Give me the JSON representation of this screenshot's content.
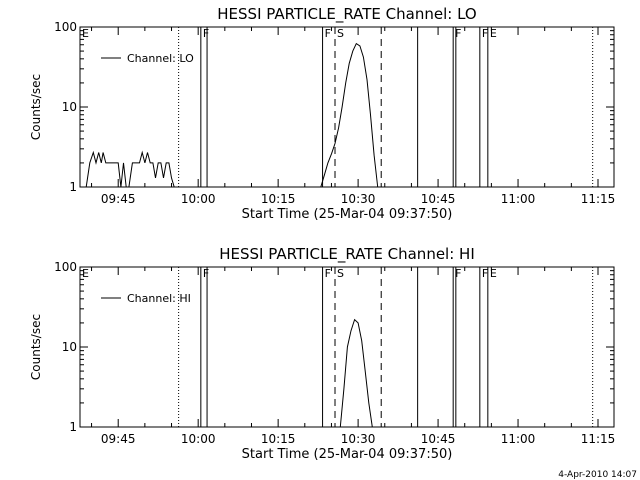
{
  "chart_data": [
    {
      "type": "line",
      "title": "HESSI PARTICLE_RATE Channel: LO",
      "xlabel": "Start Time (25-Mar-04 09:37:50)",
      "ylabel": "Counts/sec",
      "y_scale": "log",
      "ylim": [
        1,
        100
      ],
      "xlim": [
        "09:37:50",
        "11:18:00"
      ],
      "x_ticks": [
        "09:45",
        "10:00",
        "10:15",
        "10:30",
        "10:45",
        "11:00",
        "11:15"
      ],
      "y_ticks": [
        "1",
        "10",
        "100"
      ],
      "legend": {
        "entries": [
          "Channel: LO"
        ],
        "placement": "top-left"
      },
      "series": [
        {
          "name": "Channel: LO",
          "x": [
            "09:39:00",
            "09:39:40",
            "09:40:20",
            "09:40:50",
            "09:41:20",
            "09:41:50",
            "09:42:10",
            "09:42:40",
            "09:43:10",
            "09:43:40",
            "09:44:00",
            "09:44:30",
            "09:45:00",
            "09:45:30",
            "09:46:00",
            "09:46:30",
            "09:47:00",
            "09:47:40",
            "09:48:10",
            "09:49:00",
            "09:49:30",
            "09:50:00",
            "09:50:30",
            "09:51:00",
            "09:51:30",
            "09:52:00",
            "09:52:30",
            "09:53:00",
            "09:53:30",
            "09:54:00",
            "09:54:30",
            "09:55:00",
            "09:55:30",
            "09:56:00",
            "10:23:00",
            "10:23:40",
            "10:24:20",
            "10:25:00",
            "10:25:40",
            "10:26:20",
            "10:27:00",
            "10:27:40",
            "10:28:20",
            "10:29:00",
            "10:29:40",
            "10:30:20",
            "10:31:00",
            "10:31:40",
            "10:32:20",
            "10:33:00",
            "10:33:40"
          ],
          "y": [
            1.0,
            2.0,
            2.7,
            2.0,
            2.7,
            2.0,
            2.7,
            2.0,
            2.0,
            2.0,
            2.0,
            2.0,
            2.0,
            1.0,
            2.0,
            1.0,
            1.0,
            2.0,
            2.0,
            2.0,
            2.7,
            2.0,
            2.7,
            2.0,
            2.0,
            1.3,
            2.0,
            2.0,
            1.3,
            2.0,
            2.0,
            1.3,
            1.0,
            1.0,
            1.0,
            1.4,
            2.0,
            2.6,
            3.5,
            5.5,
            10,
            20,
            35,
            50,
            62,
            58,
            42,
            22,
            8,
            2.5,
            1.0
          ]
        }
      ],
      "markers": [
        {
          "label": "E",
          "x": "09:37:50",
          "style": "text"
        },
        {
          "label": "",
          "x": "09:56:20",
          "style": "dotted"
        },
        {
          "label": "F",
          "x": "10:00:30",
          "style": "solid"
        },
        {
          "label": "",
          "x": "10:01:40",
          "style": "solid"
        },
        {
          "label": "F",
          "x": "10:23:20",
          "style": "solid"
        },
        {
          "label": "S",
          "x": "10:25:40",
          "style": "dashed"
        },
        {
          "label": "",
          "x": "10:34:20",
          "style": "dashed"
        },
        {
          "label": "",
          "x": "10:41:10",
          "style": "solid"
        },
        {
          "label": "F",
          "x": "10:47:50",
          "style": "solid"
        },
        {
          "label": "",
          "x": "10:48:20",
          "style": "solid"
        },
        {
          "label": "F",
          "x": "10:52:50",
          "style": "solid"
        },
        {
          "label": "E",
          "x": "10:54:20",
          "style": "solid"
        },
        {
          "label": "",
          "x": "11:14:00",
          "style": "dotted"
        }
      ]
    },
    {
      "type": "line",
      "title": "HESSI PARTICLE_RATE Channel: HI",
      "xlabel": "Start Time (25-Mar-04 09:37:50)",
      "ylabel": "Counts/sec",
      "y_scale": "log",
      "ylim": [
        1,
        100
      ],
      "xlim": [
        "09:37:50",
        "11:18:00"
      ],
      "x_ticks": [
        "09:45",
        "10:00",
        "10:15",
        "10:30",
        "10:45",
        "11:00",
        "11:15"
      ],
      "y_ticks": [
        "1",
        "10",
        "100"
      ],
      "legend": {
        "entries": [
          "Channel: HI"
        ],
        "placement": "top-left"
      },
      "series": [
        {
          "name": "Channel: HI",
          "x": [
            "10:26:40",
            "10:27:20",
            "10:28:00",
            "10:28:40",
            "10:29:20",
            "10:30:00",
            "10:30:40",
            "10:31:20",
            "10:32:00",
            "10:32:40"
          ],
          "y": [
            1.0,
            3.0,
            10,
            16,
            22,
            20,
            12,
            5,
            2,
            1.0
          ]
        }
      ],
      "markers": [
        {
          "label": "E",
          "x": "09:37:50",
          "style": "text"
        },
        {
          "label": "",
          "x": "09:56:20",
          "style": "dotted"
        },
        {
          "label": "F",
          "x": "10:00:30",
          "style": "solid"
        },
        {
          "label": "",
          "x": "10:01:40",
          "style": "solid"
        },
        {
          "label": "F",
          "x": "10:23:20",
          "style": "solid"
        },
        {
          "label": "S",
          "x": "10:25:40",
          "style": "dashed"
        },
        {
          "label": "",
          "x": "10:34:20",
          "style": "dashed"
        },
        {
          "label": "",
          "x": "10:41:10",
          "style": "solid"
        },
        {
          "label": "F",
          "x": "10:47:50",
          "style": "solid"
        },
        {
          "label": "",
          "x": "10:48:20",
          "style": "solid"
        },
        {
          "label": "F",
          "x": "10:52:50",
          "style": "solid"
        },
        {
          "label": "E",
          "x": "10:54:20",
          "style": "solid"
        },
        {
          "label": "",
          "x": "11:14:00",
          "style": "dotted"
        }
      ]
    }
  ],
  "footer": {
    "timestamp": "4-Apr-2010 14:07"
  }
}
